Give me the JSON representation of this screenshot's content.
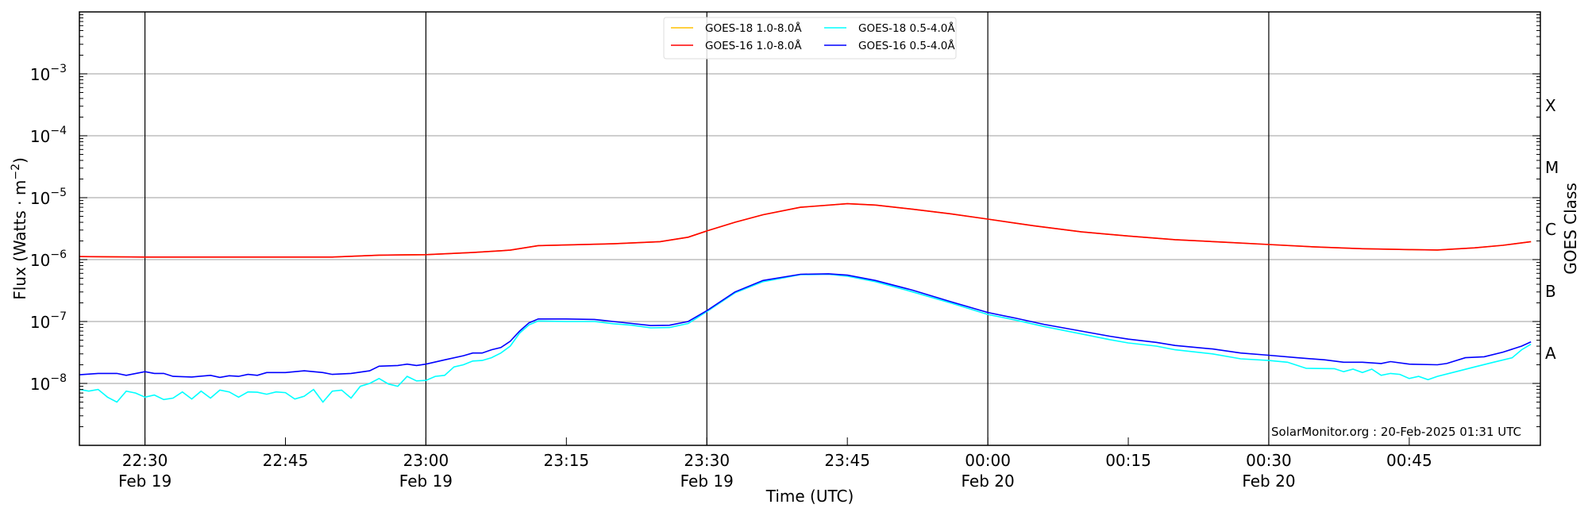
{
  "chart_data": {
    "type": "line",
    "title": "",
    "xlabel": "Time (UTC)",
    "ylabel": "Flux (Watts · m^-2)",
    "ylabel_right": "GOES Class",
    "y_scale": "log",
    "ylim": [
      1e-09,
      0.01
    ],
    "xlim": [
      "Feb 19 22:23",
      "Feb 20 00:59"
    ],
    "grid": "horizontal at each decade; vertical at major date ticks",
    "legend_position": "top-center",
    "annotation": "SolarMonitor.org : 20-Feb-2025 01:31 UTC",
    "y_ticks": [
      {
        "value": 0.001,
        "label": "10",
        "exp": "−3"
      },
      {
        "value": 0.0001,
        "label": "10",
        "exp": "−4"
      },
      {
        "value": 1e-05,
        "label": "10",
        "exp": "−5"
      },
      {
        "value": 1e-06,
        "label": "10",
        "exp": "−6"
      },
      {
        "value": 1e-07,
        "label": "10",
        "exp": "−7"
      },
      {
        "value": 1e-08,
        "label": "10",
        "exp": "−8"
      }
    ],
    "class_labels": [
      {
        "label": "X",
        "from": 0.0001,
        "to": 0.001
      },
      {
        "label": "M",
        "from": 1e-05,
        "to": 0.0001
      },
      {
        "label": "C",
        "from": 1e-06,
        "to": 1e-05
      },
      {
        "label": "B",
        "from": 1e-07,
        "to": 1e-06
      },
      {
        "label": "A",
        "from": 1e-08,
        "to": 1e-07
      }
    ],
    "x_ticks": [
      {
        "time": "22:30",
        "label": "22:30",
        "date": "Feb 19",
        "major": true
      },
      {
        "time": "22:45",
        "label": "22:45",
        "date": "",
        "major": false
      },
      {
        "time": "23:00",
        "label": "23:00",
        "date": "Feb 19",
        "major": true
      },
      {
        "time": "23:15",
        "label": "23:15",
        "date": "",
        "major": false
      },
      {
        "time": "23:30",
        "label": "23:30",
        "date": "Feb 19",
        "major": true
      },
      {
        "time": "23:45",
        "label": "23:45",
        "date": "",
        "major": false
      },
      {
        "time": "00:00",
        "label": "00:00",
        "date": "Feb 20",
        "major": true
      },
      {
        "time": "00:15",
        "label": "00:15",
        "date": "",
        "major": false
      },
      {
        "time": "00:30",
        "label": "00:30",
        "date": "Feb 20",
        "major": true
      },
      {
        "time": "00:45",
        "label": "00:45",
        "date": "",
        "major": false
      }
    ],
    "series": [
      {
        "name": "GOES-18 1.0-8.0Å",
        "color": "#ffc000",
        "points": [
          [
            "22:23",
            1.12e-06
          ],
          [
            "22:30",
            1.1e-06
          ],
          [
            "22:40",
            1.1e-06
          ],
          [
            "22:50",
            1.1e-06
          ],
          [
            "22:55",
            1.18e-06
          ],
          [
            "23:00",
            1.2e-06
          ],
          [
            "23:05",
            1.3e-06
          ],
          [
            "23:09",
            1.42e-06
          ],
          [
            "23:12",
            1.68e-06
          ],
          [
            "23:20",
            1.8e-06
          ],
          [
            "23:25",
            1.95e-06
          ],
          [
            "23:28",
            2.3e-06
          ],
          [
            "23:30",
            2.9e-06
          ],
          [
            "23:33",
            4e-06
          ],
          [
            "23:36",
            5.3e-06
          ],
          [
            "23:40",
            7e-06
          ],
          [
            "23:45",
            8e-06
          ],
          [
            "23:48",
            7.6e-06
          ],
          [
            "23:52",
            6.5e-06
          ],
          [
            "23:56",
            5.5e-06
          ],
          [
            "00:00",
            4.5e-06
          ],
          [
            "00:05",
            3.5e-06
          ],
          [
            "00:10",
            2.8e-06
          ],
          [
            "00:15",
            2.4e-06
          ],
          [
            "00:20",
            2.1e-06
          ],
          [
            "00:25",
            1.92e-06
          ],
          [
            "00:30",
            1.75e-06
          ],
          [
            "00:35",
            1.6e-06
          ],
          [
            "00:40",
            1.5e-06
          ],
          [
            "00:45",
            1.45e-06
          ],
          [
            "00:48",
            1.43e-06
          ],
          [
            "00:52",
            1.55e-06
          ],
          [
            "00:55",
            1.7e-06
          ],
          [
            "00:58",
            1.95e-06
          ]
        ]
      },
      {
        "name": "GOES-16 1.0-8.0Å",
        "color": "#ff0000",
        "points": [
          [
            "22:23",
            1.12e-06
          ],
          [
            "22:30",
            1.1e-06
          ],
          [
            "22:40",
            1.1e-06
          ],
          [
            "22:50",
            1.1e-06
          ],
          [
            "22:55",
            1.18e-06
          ],
          [
            "23:00",
            1.2e-06
          ],
          [
            "23:05",
            1.3e-06
          ],
          [
            "23:09",
            1.42e-06
          ],
          [
            "23:12",
            1.68e-06
          ],
          [
            "23:20",
            1.8e-06
          ],
          [
            "23:25",
            1.95e-06
          ],
          [
            "23:28",
            2.3e-06
          ],
          [
            "23:30",
            2.9e-06
          ],
          [
            "23:33",
            4e-06
          ],
          [
            "23:36",
            5.3e-06
          ],
          [
            "23:40",
            7e-06
          ],
          [
            "23:45",
            8e-06
          ],
          [
            "23:48",
            7.6e-06
          ],
          [
            "23:52",
            6.5e-06
          ],
          [
            "23:56",
            5.5e-06
          ],
          [
            "00:00",
            4.5e-06
          ],
          [
            "00:05",
            3.5e-06
          ],
          [
            "00:10",
            2.8e-06
          ],
          [
            "00:15",
            2.4e-06
          ],
          [
            "00:20",
            2.1e-06
          ],
          [
            "00:25",
            1.92e-06
          ],
          [
            "00:30",
            1.75e-06
          ],
          [
            "00:35",
            1.6e-06
          ],
          [
            "00:40",
            1.5e-06
          ],
          [
            "00:45",
            1.45e-06
          ],
          [
            "00:48",
            1.43e-06
          ],
          [
            "00:52",
            1.55e-06
          ],
          [
            "00:55",
            1.7e-06
          ],
          [
            "00:58",
            1.95e-06
          ]
        ]
      },
      {
        "name": "GOES-18 0.5-4.0Å",
        "color": "#00ffff",
        "points": [
          [
            "22:23",
            8e-09
          ],
          [
            "22:24",
            7.5e-09
          ],
          [
            "22:25",
            8e-09
          ],
          [
            "22:26",
            6e-09
          ],
          [
            "22:27",
            5e-09
          ],
          [
            "22:28",
            7.5e-09
          ],
          [
            "22:29",
            7e-09
          ],
          [
            "22:30",
            6e-09
          ],
          [
            "22:31",
            6.5e-09
          ],
          [
            "22:32",
            5.5e-09
          ],
          [
            "22:33",
            5.8e-09
          ],
          [
            "22:34",
            7.3e-09
          ],
          [
            "22:35",
            5.6e-09
          ],
          [
            "22:36",
            7.5e-09
          ],
          [
            "22:37",
            5.8e-09
          ],
          [
            "22:38",
            7.8e-09
          ],
          [
            "22:39",
            7.3e-09
          ],
          [
            "22:40",
            6e-09
          ],
          [
            "22:41",
            7.3e-09
          ],
          [
            "22:42",
            7.2e-09
          ],
          [
            "22:43",
            6.7e-09
          ],
          [
            "22:44",
            7.3e-09
          ],
          [
            "22:45",
            7.1e-09
          ],
          [
            "22:46",
            5.6e-09
          ],
          [
            "22:47",
            6.2e-09
          ],
          [
            "22:48",
            8e-09
          ],
          [
            "22:49",
            5e-09
          ],
          [
            "22:50",
            7.5e-09
          ],
          [
            "22:51",
            7.8e-09
          ],
          [
            "22:52",
            5.8e-09
          ],
          [
            "22:53",
            9e-09
          ],
          [
            "22:54",
            1e-08
          ],
          [
            "22:55",
            1.2e-08
          ],
          [
            "22:56",
            9.8e-09
          ],
          [
            "22:57",
            9e-09
          ],
          [
            "22:58",
            1.3e-08
          ],
          [
            "22:59",
            1.1e-08
          ],
          [
            "23:00",
            1.12e-08
          ],
          [
            "23:01",
            1.3e-08
          ],
          [
            "23:02",
            1.35e-08
          ],
          [
            "23:03",
            1.85e-08
          ],
          [
            "23:04",
            2e-08
          ],
          [
            "23:05",
            2.3e-08
          ],
          [
            "23:06",
            2.35e-08
          ],
          [
            "23:07",
            2.6e-08
          ],
          [
            "23:08",
            3.1e-08
          ],
          [
            "23:09",
            4e-08
          ],
          [
            "23:10",
            6.5e-08
          ],
          [
            "23:11",
            8.8e-08
          ],
          [
            "23:12",
            1.02e-07
          ],
          [
            "23:15",
            1e-07
          ],
          [
            "23:18",
            1e-07
          ],
          [
            "23:20",
            9.2e-08
          ],
          [
            "23:22",
            8.7e-08
          ],
          [
            "23:24",
            7.9e-08
          ],
          [
            "23:26",
            8e-08
          ],
          [
            "23:28",
            9.3e-08
          ],
          [
            "23:30",
            1.45e-07
          ],
          [
            "23:33",
            2.9e-07
          ],
          [
            "23:36",
            4.4e-07
          ],
          [
            "23:40",
            5.7e-07
          ],
          [
            "23:43",
            5.8e-07
          ],
          [
            "23:45",
            5.4e-07
          ],
          [
            "23:48",
            4.4e-07
          ],
          [
            "23:52",
            3e-07
          ],
          [
            "23:56",
            2e-07
          ],
          [
            "00:00",
            1.3e-07
          ],
          [
            "00:03",
            1.05e-07
          ],
          [
            "00:06",
            8.3e-08
          ],
          [
            "00:10",
            6.3e-08
          ],
          [
            "00:13",
            5.1e-08
          ],
          [
            "00:15",
            4.5e-08
          ],
          [
            "00:18",
            4e-08
          ],
          [
            "00:20",
            3.5e-08
          ],
          [
            "00:24",
            3e-08
          ],
          [
            "00:27",
            2.5e-08
          ],
          [
            "00:30",
            2.35e-08
          ],
          [
            "00:32",
            2.2e-08
          ],
          [
            "00:34",
            1.75e-08
          ],
          [
            "00:37",
            1.73e-08
          ],
          [
            "00:38",
            1.55e-08
          ],
          [
            "00:39",
            1.7e-08
          ],
          [
            "00:40",
            1.5e-08
          ],
          [
            "00:41",
            1.7e-08
          ],
          [
            "00:42",
            1.35e-08
          ],
          [
            "00:43",
            1.45e-08
          ],
          [
            "00:44",
            1.4e-08
          ],
          [
            "00:45",
            1.2e-08
          ],
          [
            "00:46",
            1.3e-08
          ],
          [
            "00:47",
            1.15e-08
          ],
          [
            "00:48",
            1.3e-08
          ],
          [
            "00:50",
            1.55e-08
          ],
          [
            "00:52",
            1.85e-08
          ],
          [
            "00:54",
            2.2e-08
          ],
          [
            "00:56",
            2.6e-08
          ],
          [
            "00:57",
            3.5e-08
          ],
          [
            "00:58",
            4.3e-08
          ]
        ]
      },
      {
        "name": "GOES-16 0.5-4.0Å",
        "color": "#0000ff",
        "points": [
          [
            "22:23",
            1.38e-08
          ],
          [
            "22:25",
            1.45e-08
          ],
          [
            "22:27",
            1.45e-08
          ],
          [
            "22:28",
            1.35e-08
          ],
          [
            "22:30",
            1.55e-08
          ],
          [
            "22:31",
            1.45e-08
          ],
          [
            "22:32",
            1.45e-08
          ],
          [
            "22:33",
            1.3e-08
          ],
          [
            "22:35",
            1.27e-08
          ],
          [
            "22:37",
            1.35e-08
          ],
          [
            "22:38",
            1.25e-08
          ],
          [
            "22:39",
            1.33e-08
          ],
          [
            "22:40",
            1.3e-08
          ],
          [
            "22:41",
            1.4e-08
          ],
          [
            "22:42",
            1.35e-08
          ],
          [
            "22:43",
            1.5e-08
          ],
          [
            "22:45",
            1.5e-08
          ],
          [
            "22:47",
            1.6e-08
          ],
          [
            "22:48",
            1.55e-08
          ],
          [
            "22:49",
            1.5e-08
          ],
          [
            "22:50",
            1.4e-08
          ],
          [
            "22:52",
            1.45e-08
          ],
          [
            "22:54",
            1.6e-08
          ],
          [
            "22:55",
            1.9e-08
          ],
          [
            "22:57",
            1.95e-08
          ],
          [
            "22:58",
            2.05e-08
          ],
          [
            "22:59",
            1.95e-08
          ],
          [
            "23:00",
            2.05e-08
          ],
          [
            "23:02",
            2.4e-08
          ],
          [
            "23:04",
            2.8e-08
          ],
          [
            "23:05",
            3.1e-08
          ],
          [
            "23:06",
            3.1e-08
          ],
          [
            "23:07",
            3.5e-08
          ],
          [
            "23:08",
            3.8e-08
          ],
          [
            "23:09",
            4.8e-08
          ],
          [
            "23:10",
            7e-08
          ],
          [
            "23:11",
            9.5e-08
          ],
          [
            "23:12",
            1.1e-07
          ],
          [
            "23:15",
            1.1e-07
          ],
          [
            "23:18",
            1.08e-07
          ],
          [
            "23:20",
            1e-07
          ],
          [
            "23:22",
            9.3e-08
          ],
          [
            "23:24",
            8.6e-08
          ],
          [
            "23:26",
            8.7e-08
          ],
          [
            "23:28",
            1e-07
          ],
          [
            "23:30",
            1.5e-07
          ],
          [
            "23:33",
            3e-07
          ],
          [
            "23:36",
            4.6e-07
          ],
          [
            "23:40",
            5.8e-07
          ],
          [
            "23:43",
            5.9e-07
          ],
          [
            "23:45",
            5.6e-07
          ],
          [
            "23:48",
            4.6e-07
          ],
          [
            "23:52",
            3.2e-07
          ],
          [
            "23:56",
            2.1e-07
          ],
          [
            "00:00",
            1.4e-07
          ],
          [
            "00:03",
            1.13e-07
          ],
          [
            "00:06",
            9e-08
          ],
          [
            "00:10",
            7e-08
          ],
          [
            "00:13",
            5.8e-08
          ],
          [
            "00:15",
            5.2e-08
          ],
          [
            "00:18",
            4.6e-08
          ],
          [
            "00:20",
            4.1e-08
          ],
          [
            "00:24",
            3.6e-08
          ],
          [
            "00:27",
            3.1e-08
          ],
          [
            "00:30",
            2.85e-08
          ],
          [
            "00:33",
            2.6e-08
          ],
          [
            "00:36",
            2.4e-08
          ],
          [
            "00:38",
            2.2e-08
          ],
          [
            "00:40",
            2.2e-08
          ],
          [
            "00:42",
            2.1e-08
          ],
          [
            "00:43",
            2.25e-08
          ],
          [
            "00:45",
            2.05e-08
          ],
          [
            "00:48",
            2e-08
          ],
          [
            "00:49",
            2.1e-08
          ],
          [
            "00:51",
            2.6e-08
          ],
          [
            "00:53",
            2.7e-08
          ],
          [
            "00:55",
            3.2e-08
          ],
          [
            "00:57",
            4e-08
          ],
          [
            "00:58",
            4.7e-08
          ]
        ]
      }
    ]
  }
}
